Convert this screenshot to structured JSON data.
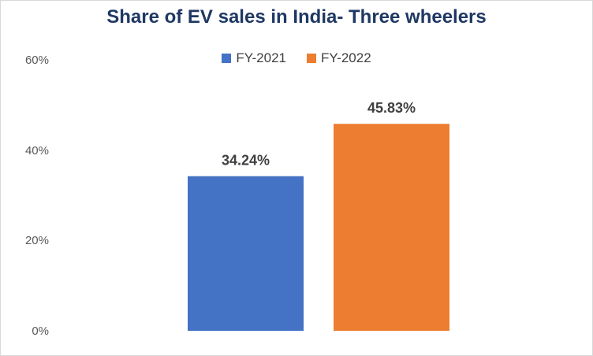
{
  "chart_data": {
    "type": "bar",
    "title": "Share of EV sales in India- Three wheelers",
    "categories": [
      ""
    ],
    "series": [
      {
        "name": "FY-2021",
        "values": [
          34.24
        ],
        "label": "34.24%",
        "color": "#4472c4"
      },
      {
        "name": "FY-2022",
        "values": [
          45.83
        ],
        "label": "45.83%",
        "color": "#ed7d31"
      }
    ],
    "yticks": [
      "0%",
      "20%",
      "40%",
      "60%"
    ],
    "ylim": [
      0,
      60
    ],
    "xlabel": "",
    "ylabel": "",
    "grid": false,
    "legend": "top-center"
  }
}
